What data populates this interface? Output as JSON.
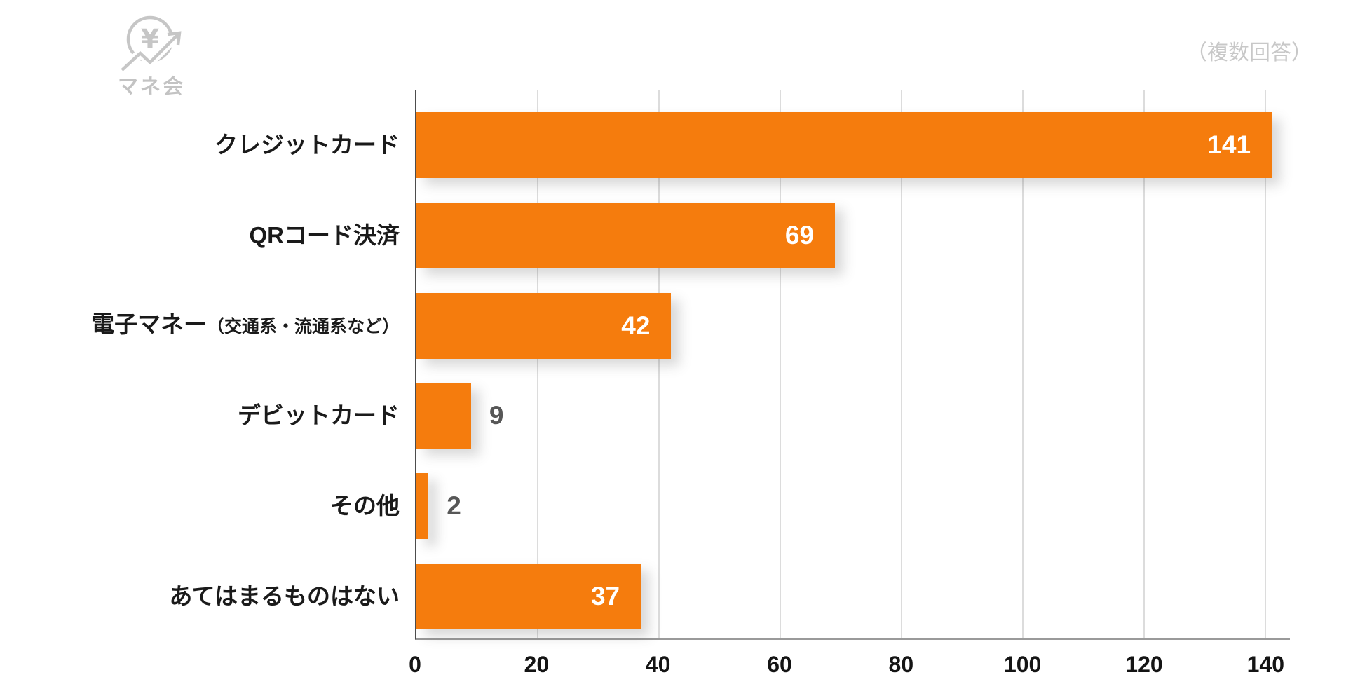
{
  "logo": {
    "text": "マネ会",
    "icon": "coin-yen-trend-arrow",
    "color": "#c6c6c6"
  },
  "note": "（複数回答）",
  "chart_data": {
    "type": "bar",
    "orientation": "horizontal",
    "title": "",
    "note": "（複数回答）",
    "categories": [
      {
        "main": "クレジットカード",
        "sub": ""
      },
      {
        "main": "QRコード決済",
        "sub": ""
      },
      {
        "main": "電子マネー",
        "sub": "（交通系・流通系など）"
      },
      {
        "main": "デビットカード",
        "sub": ""
      },
      {
        "main": "その他",
        "sub": ""
      },
      {
        "main": "あてはまるものはない",
        "sub": ""
      }
    ],
    "values": [
      141,
      69,
      42,
      9,
      2,
      37
    ],
    "x_ticks": [
      0,
      20,
      40,
      60,
      80,
      100,
      120,
      140
    ],
    "xlim": [
      0,
      144
    ],
    "grid": true,
    "bar_color": "#f57c0d",
    "value_label_inside_color": "#ffffff",
    "value_label_outside_color": "#575757",
    "value_label_inside_min": 20,
    "gridline_color": "#dcdcdc",
    "axis_line_color": "#9a9a9a"
  }
}
